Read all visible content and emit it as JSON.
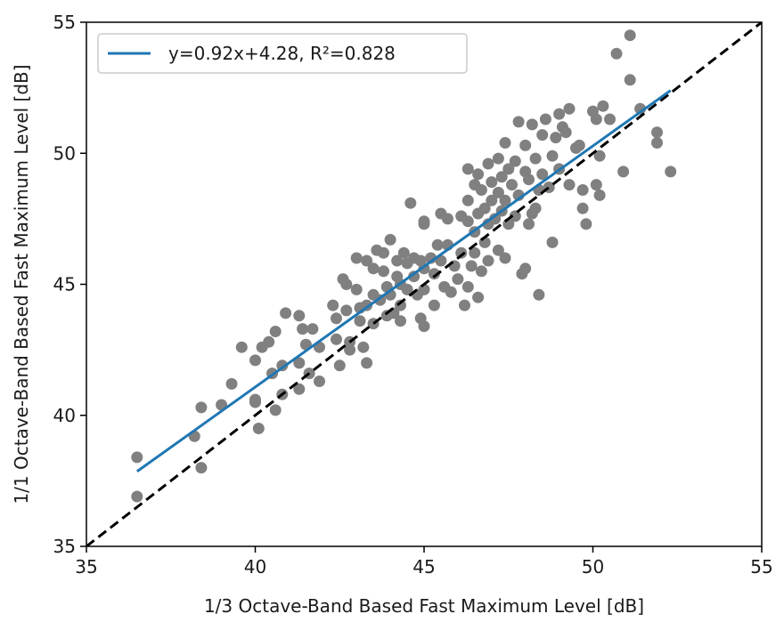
{
  "chart_data": {
    "type": "scatter",
    "title": "",
    "xlabel": "1/3 Octave-Band Based Fast Maximum Level [dB]",
    "ylabel": "1/1 Octave-Band Based Fast Maximum Level [dB]",
    "xlim": [
      35,
      55
    ],
    "ylim": [
      35,
      55
    ],
    "xticks": [
      "35",
      "40",
      "45",
      "50",
      "55"
    ],
    "yticks": [
      "35",
      "40",
      "45",
      "50",
      "55"
    ],
    "legend": {
      "placement": "top-left",
      "label": "y=0.92x+4.28, R²=0.828"
    },
    "colors": {
      "points": "#808080",
      "fit": "#1f77b4",
      "identity": "#000000"
    },
    "fit": {
      "slope": 0.92,
      "intercept": 4.28,
      "x_range": [
        36.5,
        52.3
      ]
    },
    "identity_line": {
      "from": [
        35,
        35
      ],
      "to": [
        55,
        55
      ],
      "style": "dashed"
    },
    "points": [
      [
        36.5,
        38.4
      ],
      [
        36.5,
        36.9
      ],
      [
        38.2,
        39.2
      ],
      [
        38.4,
        38.0
      ],
      [
        38.4,
        40.3
      ],
      [
        39.0,
        40.4
      ],
      [
        39.3,
        41.2
      ],
      [
        39.6,
        42.6
      ],
      [
        40.0,
        42.1
      ],
      [
        40.0,
        40.6
      ],
      [
        40.0,
        40.5
      ],
      [
        40.1,
        39.5
      ],
      [
        40.2,
        42.6
      ],
      [
        40.4,
        42.8
      ],
      [
        40.5,
        41.6
      ],
      [
        40.6,
        43.2
      ],
      [
        40.6,
        40.2
      ],
      [
        40.8,
        41.9
      ],
      [
        40.8,
        40.8
      ],
      [
        40.9,
        43.9
      ],
      [
        41.3,
        43.8
      ],
      [
        41.4,
        43.3
      ],
      [
        41.3,
        42.0
      ],
      [
        41.3,
        41.0
      ],
      [
        41.5,
        42.7
      ],
      [
        41.6,
        41.6
      ],
      [
        41.7,
        43.3
      ],
      [
        41.9,
        42.6
      ],
      [
        41.9,
        41.3
      ],
      [
        42.3,
        44.2
      ],
      [
        42.4,
        43.7
      ],
      [
        42.4,
        42.9
      ],
      [
        42.5,
        41.9
      ],
      [
        42.6,
        45.2
      ],
      [
        42.7,
        45.0
      ],
      [
        42.7,
        44.0
      ],
      [
        42.8,
        42.8
      ],
      [
        42.8,
        42.5
      ],
      [
        43.0,
        46.0
      ],
      [
        43.0,
        44.8
      ],
      [
        43.1,
        44.1
      ],
      [
        43.1,
        43.6
      ],
      [
        43.2,
        42.6
      ],
      [
        43.3,
        45.9
      ],
      [
        43.3,
        44.2
      ],
      [
        43.3,
        42.0
      ],
      [
        43.5,
        45.6
      ],
      [
        43.5,
        44.6
      ],
      [
        43.5,
        43.5
      ],
      [
        43.6,
        46.3
      ],
      [
        43.7,
        44.4
      ],
      [
        43.8,
        46.2
      ],
      [
        43.8,
        45.5
      ],
      [
        43.9,
        44.9
      ],
      [
        43.9,
        43.8
      ],
      [
        44.0,
        46.7
      ],
      [
        44.0,
        44.6
      ],
      [
        44.1,
        43.9
      ],
      [
        44.2,
        45.9
      ],
      [
        44.2,
        45.3
      ],
      [
        44.3,
        45.0
      ],
      [
        44.3,
        44.2
      ],
      [
        44.3,
        43.6
      ],
      [
        44.4,
        46.2
      ],
      [
        44.5,
        45.8
      ],
      [
        44.5,
        44.8
      ],
      [
        44.6,
        48.1
      ],
      [
        44.7,
        46.0
      ],
      [
        44.7,
        45.3
      ],
      [
        44.8,
        44.6
      ],
      [
        44.9,
        45.9
      ],
      [
        44.9,
        43.7
      ],
      [
        45.0,
        47.4
      ],
      [
        45.0,
        47.3
      ],
      [
        45.0,
        45.6
      ],
      [
        45.0,
        44.8
      ],
      [
        45.0,
        43.4
      ],
      [
        45.2,
        46.0
      ],
      [
        45.3,
        45.4
      ],
      [
        45.3,
        44.2
      ],
      [
        45.4,
        46.5
      ],
      [
        45.5,
        47.7
      ],
      [
        45.5,
        45.9
      ],
      [
        45.6,
        44.9
      ],
      [
        45.7,
        47.5
      ],
      [
        45.7,
        46.5
      ],
      [
        45.8,
        44.7
      ],
      [
        45.9,
        45.7
      ],
      [
        46.0,
        45.2
      ],
      [
        46.1,
        47.6
      ],
      [
        46.1,
        46.2
      ],
      [
        46.2,
        44.2
      ],
      [
        46.3,
        49.4
      ],
      [
        46.3,
        48.2
      ],
      [
        46.3,
        47.4
      ],
      [
        46.3,
        44.9
      ],
      [
        46.4,
        45.7
      ],
      [
        46.5,
        48.8
      ],
      [
        46.5,
        47.0
      ],
      [
        46.5,
        46.2
      ],
      [
        46.6,
        49.2
      ],
      [
        46.6,
        47.7
      ],
      [
        46.6,
        44.5
      ],
      [
        46.7,
        48.6
      ],
      [
        46.7,
        45.5
      ],
      [
        46.8,
        47.9
      ],
      [
        46.8,
        46.6
      ],
      [
        46.9,
        49.6
      ],
      [
        46.9,
        47.3
      ],
      [
        46.9,
        45.9
      ],
      [
        47.0,
        48.9
      ],
      [
        47.0,
        48.2
      ],
      [
        47.1,
        47.5
      ],
      [
        47.2,
        49.8
      ],
      [
        47.2,
        48.5
      ],
      [
        47.2,
        46.3
      ],
      [
        47.3,
        49.1
      ],
      [
        47.3,
        47.8
      ],
      [
        47.4,
        50.4
      ],
      [
        47.4,
        48.2
      ],
      [
        47.4,
        46.0
      ],
      [
        47.5,
        49.4
      ],
      [
        47.5,
        47.3
      ],
      [
        47.6,
        48.8
      ],
      [
        47.7,
        49.7
      ],
      [
        47.7,
        47.6
      ],
      [
        47.8,
        51.2
      ],
      [
        47.8,
        48.4
      ],
      [
        47.9,
        45.4
      ],
      [
        48.0,
        50.3
      ],
      [
        48.0,
        49.3
      ],
      [
        48.0,
        45.6
      ],
      [
        48.1,
        47.3
      ],
      [
        48.1,
        49.0
      ],
      [
        48.2,
        51.1
      ],
      [
        48.2,
        47.7
      ],
      [
        48.3,
        49.8
      ],
      [
        48.3,
        47.9
      ],
      [
        48.4,
        48.6
      ],
      [
        48.4,
        44.6
      ],
      [
        48.5,
        50.7
      ],
      [
        48.5,
        49.2
      ],
      [
        48.6,
        51.3
      ],
      [
        48.7,
        48.7
      ],
      [
        48.8,
        49.9
      ],
      [
        48.8,
        46.6
      ],
      [
        48.9,
        50.6
      ],
      [
        49.0,
        51.5
      ],
      [
        49.0,
        49.4
      ],
      [
        49.1,
        51.0
      ],
      [
        49.2,
        50.8
      ],
      [
        49.3,
        51.7
      ],
      [
        49.3,
        48.8
      ],
      [
        49.5,
        50.2
      ],
      [
        49.6,
        50.3
      ],
      [
        49.7,
        48.6
      ],
      [
        49.7,
        47.9
      ],
      [
        49.8,
        47.3
      ],
      [
        50.0,
        51.6
      ],
      [
        50.1,
        51.3
      ],
      [
        50.1,
        48.8
      ],
      [
        50.2,
        49.9
      ],
      [
        50.2,
        48.4
      ],
      [
        50.3,
        51.8
      ],
      [
        50.5,
        51.3
      ],
      [
        50.7,
        53.8
      ],
      [
        50.9,
        49.3
      ],
      [
        51.1,
        54.5
      ],
      [
        51.1,
        52.8
      ],
      [
        51.4,
        51.7
      ],
      [
        51.9,
        50.8
      ],
      [
        51.9,
        50.4
      ],
      [
        52.3,
        49.3
      ]
    ]
  }
}
